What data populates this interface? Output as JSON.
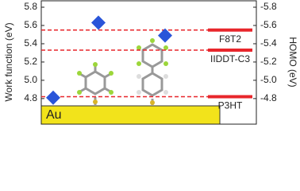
{
  "chart_data": {
    "type": "scatter",
    "ylabel": "Work function (eV)",
    "y2label": "HOMO (eV)",
    "ylim": [
      4.52,
      5.87
    ],
    "yticks": [
      4.8,
      {
        "value": 5,
        "label": "5.0"
      },
      5.2,
      5.4,
      5.6,
      5.8
    ],
    "y2lim": [
      -4.52,
      -5.87
    ],
    "y2ticks": [
      -4.8,
      {
        "value": -5,
        "label": "-5.0"
      },
      -5.2,
      -5.4,
      -5.6,
      -5.8
    ],
    "categories": [
      null,
      null,
      null
    ],
    "work_function": {
      "values": [
        4.81,
        5.63,
        5.49
      ],
      "color": "#2a55d9"
    },
    "homo_levels": {
      "names": [
        "F8T2",
        "IIDDT-C3",
        "P3HT"
      ],
      "values": [
        -5.55,
        -5.33,
        -4.82
      ],
      "color": "#e8262b",
      "axis": "y2"
    },
    "annotation": "Au"
  }
}
